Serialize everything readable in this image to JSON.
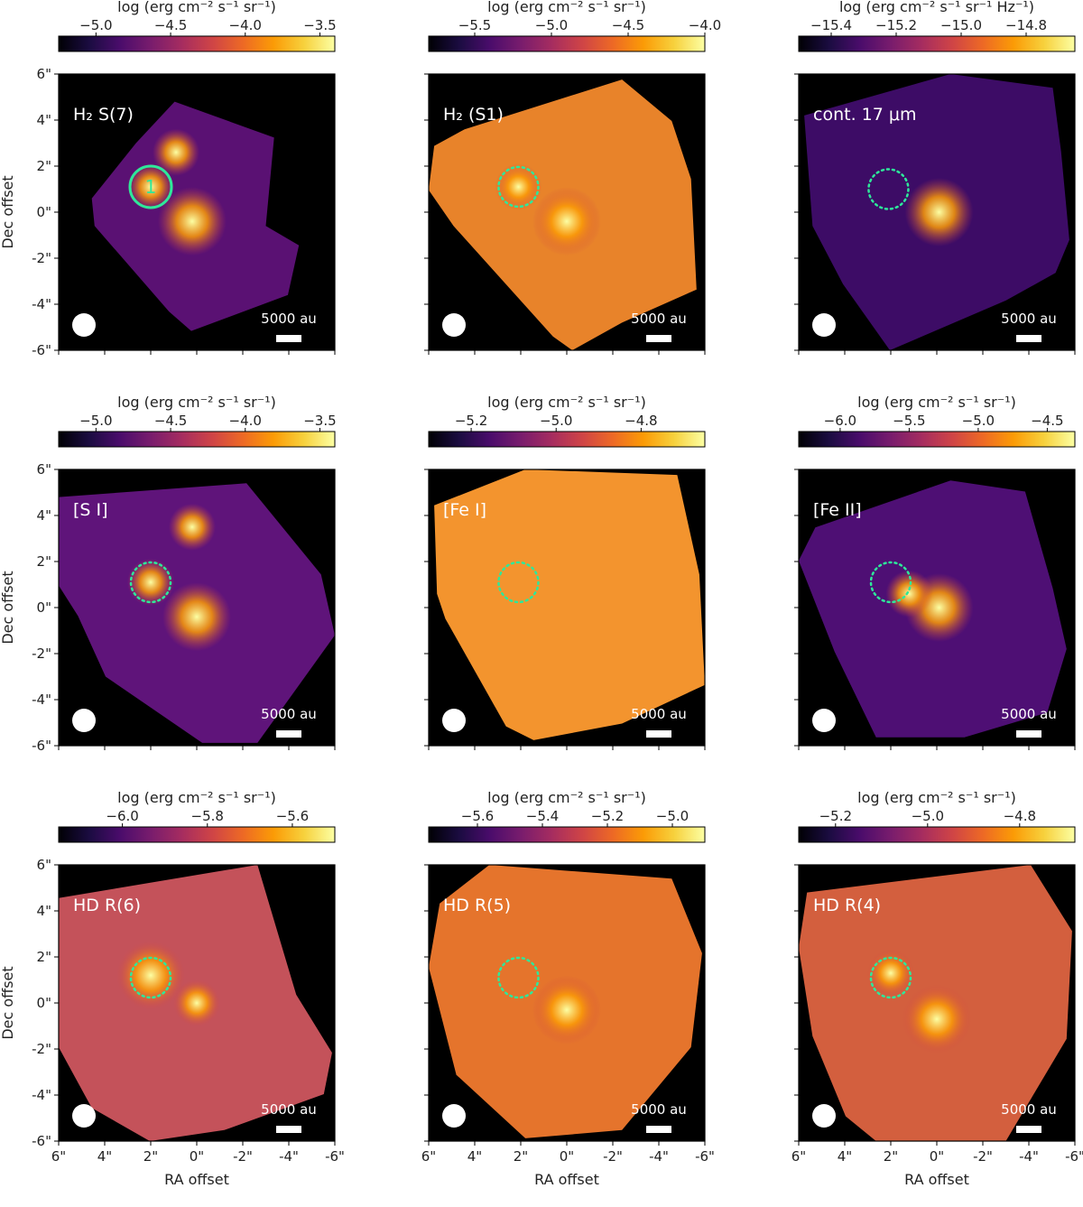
{
  "figure": {
    "x_axis_title": "RA offset",
    "y_axis_title": "Dec offset",
    "x_tick_labels": [
      "6\"",
      "4\"",
      "2\"",
      "0\"",
      "-2\"",
      "-4\"",
      "-6\""
    ],
    "y_tick_labels": [
      "6\"",
      "4\"",
      "2\"",
      "0\"",
      "-2\"",
      "-4\"",
      "-6\""
    ],
    "scalebar_label": "5000 au",
    "colormap": [
      "#000004",
      "#1b0c41",
      "#4a0c6b",
      "#781c6d",
      "#a52c60",
      "#cf4446",
      "#ed6925",
      "#fb9b06",
      "#f7d13d",
      "#fcffa4"
    ],
    "circle_color": "#2ee89a"
  },
  "chart_data": [
    {
      "type": "heatmap",
      "label": "H₂ S(7)",
      "colorbar": {
        "title": "log (erg cm⁻² s⁻¹ sr⁻¹)",
        "range": [
          -5.25,
          -3.4
        ],
        "ticks": [
          -5.0,
          -4.5,
          -4.0,
          -3.5
        ],
        "tick_labels": [
          "−5.0",
          "−4.5",
          "−4.0",
          "−3.5"
        ]
      },
      "peaks_arcsec": [
        [
          0.2,
          -0.4
        ],
        [
          2.0,
          1.1
        ],
        [
          0.9,
          2.6
        ]
      ],
      "aperture": {
        "number": "1",
        "center_arcsec": [
          2.0,
          1.1
        ],
        "radius_arcsec": 0.9,
        "style": "solid"
      }
    },
    {
      "type": "heatmap",
      "label": "H₂ (S1)",
      "colorbar": {
        "title": "log (erg cm⁻² s⁻¹ sr⁻¹)",
        "range": [
          -5.8,
          -4.0
        ],
        "ticks": [
          -5.5,
          -5.0,
          -4.5,
          -4.0
        ],
        "tick_labels": [
          "−5.5",
          "−5.0",
          "−4.5",
          "−4.0"
        ]
      },
      "peaks_arcsec": [
        [
          0.0,
          -0.4
        ],
        [
          2.1,
          1.1
        ]
      ],
      "aperture": {
        "center_arcsec": [
          2.1,
          1.1
        ],
        "radius_arcsec": 0.9,
        "style": "dotted"
      }
    },
    {
      "type": "heatmap",
      "label": "cont. 17 μm",
      "colorbar": {
        "title": "log (erg cm⁻² s⁻¹ sr⁻¹ Hz⁻¹)",
        "range": [
          -15.5,
          -14.65
        ],
        "ticks": [
          -15.4,
          -15.2,
          -15.0,
          -14.8
        ],
        "tick_labels": [
          "−15.4",
          "−15.2",
          "−15.0",
          "−14.8"
        ]
      },
      "peaks_arcsec": [
        [
          -0.1,
          0.0
        ]
      ],
      "aperture": {
        "center_arcsec": [
          2.1,
          1.0
        ],
        "radius_arcsec": 0.9,
        "style": "dotted"
      }
    },
    {
      "type": "heatmap",
      "label": "[S I]",
      "colorbar": {
        "title": "log (erg cm⁻² s⁻¹ sr⁻¹)",
        "range": [
          -5.25,
          -3.4
        ],
        "ticks": [
          -5.0,
          -4.5,
          -4.0,
          -3.5
        ],
        "tick_labels": [
          "−5.0",
          "−4.5",
          "−4.0",
          "−3.5"
        ]
      },
      "peaks_arcsec": [
        [
          0.0,
          -0.4
        ],
        [
          2.0,
          1.1
        ],
        [
          0.2,
          3.5
        ]
      ],
      "aperture": {
        "center_arcsec": [
          2.0,
          1.1
        ],
        "radius_arcsec": 0.9,
        "style": "dotted"
      }
    },
    {
      "type": "heatmap",
      "label": "[Fe I]",
      "colorbar": {
        "title": "log (erg cm⁻² s⁻¹ sr⁻¹)",
        "range": [
          -5.3,
          -4.65
        ],
        "ticks": [
          -5.2,
          -5.0,
          -4.8
        ],
        "tick_labels": [
          "−5.2",
          "−5.0",
          "−4.8"
        ]
      },
      "peaks_arcsec": [],
      "aperture": {
        "center_arcsec": [
          2.1,
          1.1
        ],
        "radius_arcsec": 0.9,
        "style": "dotted"
      }
    },
    {
      "type": "heatmap",
      "label": "[Fe II]",
      "colorbar": {
        "title": "log (erg cm⁻² s⁻¹ sr⁻¹)",
        "range": [
          -6.3,
          -4.3
        ],
        "ticks": [
          -6.0,
          -5.5,
          -5.0,
          -4.5
        ],
        "tick_labels": [
          "−6.0",
          "−5.5",
          "−5.0",
          "−4.5"
        ]
      },
      "peaks_arcsec": [
        [
          -0.1,
          0.0
        ],
        [
          1.2,
          0.6
        ]
      ],
      "aperture": {
        "center_arcsec": [
          2.0,
          1.1
        ],
        "radius_arcsec": 0.9,
        "style": "dotted"
      }
    },
    {
      "type": "heatmap",
      "label": "HD R(6)",
      "colorbar": {
        "title": "log (erg cm⁻² s⁻¹ sr⁻¹)",
        "range": [
          -6.15,
          -5.5
        ],
        "ticks": [
          -6.0,
          -5.8,
          -5.6
        ],
        "tick_labels": [
          "−6.0",
          "−5.8",
          "−5.6"
        ]
      },
      "peaks_arcsec": [
        [
          2.0,
          1.2
        ],
        [
          0.0,
          0.0
        ]
      ],
      "aperture": {
        "center_arcsec": [
          2.0,
          1.1
        ],
        "radius_arcsec": 0.9,
        "style": "dotted"
      }
    },
    {
      "type": "heatmap",
      "label": "HD R(5)",
      "colorbar": {
        "title": "log (erg cm⁻² s⁻¹ sr⁻¹)",
        "range": [
          -5.75,
          -4.9
        ],
        "ticks": [
          -5.6,
          -5.4,
          -5.2,
          -5.0
        ],
        "tick_labels": [
          "−5.6",
          "−5.4",
          "−5.2",
          "−5.0"
        ]
      },
      "peaks_arcsec": [
        [
          0.0,
          -0.3
        ]
      ],
      "aperture": {
        "center_arcsec": [
          2.1,
          1.1
        ],
        "radius_arcsec": 0.9,
        "style": "dotted"
      }
    },
    {
      "type": "heatmap",
      "label": "HD R(4)",
      "colorbar": {
        "title": "log (erg cm⁻² s⁻¹ sr⁻¹)",
        "range": [
          -5.28,
          -4.68
        ],
        "ticks": [
          -5.2,
          -5.0,
          -4.8
        ],
        "tick_labels": [
          "−5.2",
          "−5.0",
          "−4.8"
        ]
      },
      "peaks_arcsec": [
        [
          0.0,
          -0.7
        ],
        [
          2.0,
          1.3
        ]
      ],
      "aperture": {
        "center_arcsec": [
          2.0,
          1.1
        ],
        "radius_arcsec": 0.9,
        "style": "dotted"
      }
    }
  ]
}
